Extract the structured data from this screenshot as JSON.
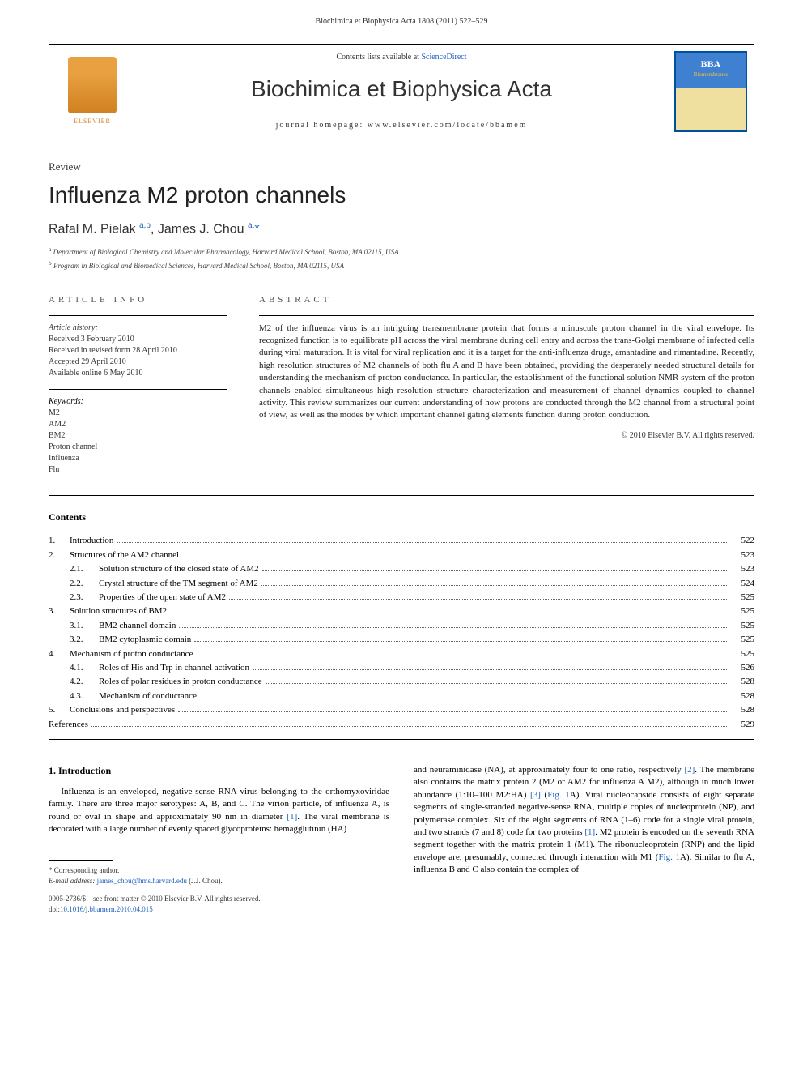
{
  "running_header": "Biochimica et Biophysica Acta 1808 (2011) 522–529",
  "masthead": {
    "contents_prefix": "Contents lists available at ",
    "contents_link": "ScienceDirect",
    "journal": "Biochimica et Biophysica Acta",
    "homepage_prefix": "journal homepage: ",
    "homepage": "www.elsevier.com/locate/bbamem",
    "publisher": "ELSEVIER",
    "cover_title": "BBA",
    "cover_sub": "Biomembranes"
  },
  "article": {
    "type": "Review",
    "title": "Influenza M2 proton channels",
    "authors_html": "Rafal M. Pielak",
    "author1_aff": "a,b",
    "author2": "James J. Chou",
    "author2_aff": "a,",
    "corr_mark": "*",
    "affiliations": [
      {
        "sup": "a",
        "text": "Department of Biological Chemistry and Molecular Pharmacology, Harvard Medical School, Boston, MA 02115, USA"
      },
      {
        "sup": "b",
        "text": "Program in Biological and Biomedical Sciences, Harvard Medical School, Boston, MA 02115, USA"
      }
    ]
  },
  "info": {
    "label": "ARTICLE INFO",
    "history_label": "Article history:",
    "history": [
      "Received 3 February 2010",
      "Received in revised form 28 April 2010",
      "Accepted 29 April 2010",
      "Available online 6 May 2010"
    ],
    "keywords_label": "Keywords:",
    "keywords": [
      "M2",
      "AM2",
      "BM2",
      "Proton channel",
      "Influenza",
      "Flu"
    ]
  },
  "abstract": {
    "label": "ABSTRACT",
    "text": "M2 of the influenza virus is an intriguing transmembrane protein that forms a minuscule proton channel in the viral envelope. Its recognized function is to equilibrate pH across the viral membrane during cell entry and across the trans-Golgi membrane of infected cells during viral maturation. It is vital for viral replication and it is a target for the anti-influenza drugs, amantadine and rimantadine. Recently, high resolution structures of M2 channels of both flu A and B have been obtained, providing the desperately needed structural details for understanding the mechanism of proton conductance. In particular, the establishment of the functional solution NMR system of the proton channels enabled simultaneous high resolution structure characterization and measurement of channel dynamics coupled to channel activity. This review summarizes our current understanding of how protons are conducted through the M2 channel from a structural point of view, as well as the modes by which important channel gating elements function during proton conduction.",
    "copyright": "© 2010 Elsevier B.V. All rights reserved."
  },
  "contents": {
    "heading": "Contents",
    "items": [
      {
        "num": "1.",
        "sub": "",
        "title": "Introduction",
        "page": "522"
      },
      {
        "num": "2.",
        "sub": "",
        "title": "Structures of the AM2 channel",
        "page": "523"
      },
      {
        "num": "",
        "sub": "2.1.",
        "title": "Solution structure of the closed state of AM2",
        "page": "523"
      },
      {
        "num": "",
        "sub": "2.2.",
        "title": "Crystal structure of the TM segment of AM2",
        "page": "524"
      },
      {
        "num": "",
        "sub": "2.3.",
        "title": "Properties of the open state of AM2",
        "page": "525"
      },
      {
        "num": "3.",
        "sub": "",
        "title": "Solution structures of BM2",
        "page": "525"
      },
      {
        "num": "",
        "sub": "3.1.",
        "title": "BM2 channel domain",
        "page": "525"
      },
      {
        "num": "",
        "sub": "3.2.",
        "title": "BM2 cytoplasmic domain",
        "page": "525"
      },
      {
        "num": "4.",
        "sub": "",
        "title": "Mechanism of proton conductance",
        "page": "525"
      },
      {
        "num": "",
        "sub": "4.1.",
        "title": "Roles of His and Trp in channel activation",
        "page": "526"
      },
      {
        "num": "",
        "sub": "4.2.",
        "title": "Roles of polar residues in proton conductance",
        "page": "528"
      },
      {
        "num": "",
        "sub": "4.3.",
        "title": "Mechanism of conductance",
        "page": "528"
      },
      {
        "num": "5.",
        "sub": "",
        "title": "Conclusions and perspectives",
        "page": "528"
      },
      {
        "num": "",
        "sub": "",
        "title": "References",
        "page": "529",
        "noindent": true
      }
    ]
  },
  "body": {
    "h1": "1. Introduction",
    "left_p1": "Influenza is an enveloped, negative-sense RNA virus belonging to the orthomyxoviridae family. There are three major serotypes: A, B, and C. The virion particle, of influenza A, is round or oval in shape and approximately 90 nm in diameter ",
    "left_ref1": "[1]",
    "left_p1b": ". The viral membrane is decorated with a large number of evenly spaced glycoproteins: hemagglutinin (HA)",
    "right_p1a": "and neuraminidase (NA), at approximately four to one ratio, respectively ",
    "right_ref2": "[2]",
    "right_p1b": ". The membrane also contains the matrix protein 2 (M2 or AM2 for influenza A M2), although in much lower abundance (1:10–100 M2:HA) ",
    "right_ref3": "[3]",
    "right_p1c": " (",
    "right_fig1": "Fig. 1",
    "right_p1d": "A). Viral nucleocapside consists of eight separate segments of single-stranded negative-sense RNA, multiple copies of nucleoprotein (NP), and polymerase complex. Six of the eight segments of RNA (1–6) code for a single viral protein, and two strands (7 and 8) code for two proteins ",
    "right_ref1b": "[1]",
    "right_p1e": ". M2 protein is encoded on the seventh RNA segment together with the matrix protein 1 (M1). The ribonucleoprotein (RNP) and the lipid envelope are, presumably, connected through interaction with M1 (",
    "right_fig1b": "Fig. 1",
    "right_p1f": "A). Similar to flu A, influenza B and C also contain the complex of"
  },
  "footer": {
    "corr_label": "* Corresponding author.",
    "email_label": "E-mail address: ",
    "email": "james_chou@hms.harvard.edu",
    "email_who": " (J.J. Chou).",
    "issn": "0005-2736/$ – see front matter © 2010 Elsevier B.V. All rights reserved.",
    "doi_label": "doi:",
    "doi": "10.1016/j.bbamem.2010.04.015"
  },
  "colors": {
    "link": "#2060c0",
    "text": "#222222",
    "elsevier": "#d08020",
    "cover_border": "#0050a0"
  }
}
